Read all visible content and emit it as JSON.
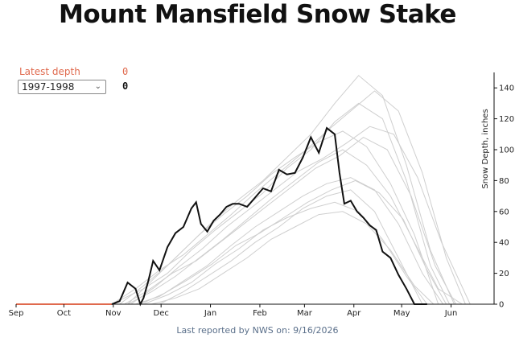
{
  "header": {
    "title": "Mount Mansfield Snow Stake"
  },
  "controls": {
    "latest_depth_label": "Latest depth",
    "latest_depth_value": "0",
    "season_selected": "1997-1998",
    "season_depth_value": "0"
  },
  "footer": {
    "text": "Last reported by NWS on: 9/16/2026"
  },
  "colors": {
    "accent": "#e06a4e",
    "highlight_line": "#111111",
    "background_lines": "#cfcfcf",
    "footer_text": "#5a6f8a"
  },
  "chart_data": {
    "type": "line",
    "title": "Mount Mansfield Snow Stake",
    "xlabel": "",
    "ylabel": "Snow Depth, inches",
    "x_tick_labels": [
      "Sep",
      "Oct",
      "Nov",
      "Dec",
      "Jan",
      "Feb",
      "Mar",
      "Apr",
      "May",
      "Jun"
    ],
    "y_ticks": [
      0,
      20,
      40,
      60,
      80,
      100,
      120,
      140
    ],
    "ylim": [
      0,
      150
    ],
    "x_unit": "days since Sep 1",
    "grid": false,
    "y_axis_position": "right",
    "series": [
      {
        "name": "1997-1998",
        "highlighted": true,
        "x": [
          0,
          60,
          65,
          70,
          75,
          78,
          80,
          83,
          86,
          90,
          95,
          100,
          105,
          110,
          113,
          116,
          120,
          124,
          128,
          132,
          136,
          140,
          145,
          150,
          155,
          160,
          165,
          170,
          175,
          180,
          185,
          190,
          195,
          200,
          203,
          206,
          210,
          214,
          218,
          222,
          226,
          230,
          235,
          240,
          245,
          250,
          255,
          258
        ],
        "y": [
          0,
          0,
          2,
          14,
          10,
          0,
          4,
          15,
          28,
          22,
          37,
          46,
          50,
          62,
          66,
          52,
          47,
          54,
          58,
          63,
          65,
          65,
          63,
          69,
          75,
          73,
          87,
          84,
          85,
          95,
          108,
          98,
          114,
          110,
          85,
          65,
          67,
          60,
          56,
          51,
          48,
          34,
          30,
          19,
          10,
          0,
          0,
          0
        ]
      },
      {
        "name": "",
        "highlighted": false,
        "x": [
          0,
          70,
          85,
          100,
          115,
          130,
          145,
          160,
          175,
          190,
          205,
          220,
          235,
          250,
          265,
          280
        ],
        "y": [
          0,
          0,
          8,
          18,
          30,
          42,
          55,
          68,
          80,
          92,
          100,
          90,
          70,
          40,
          10,
          0
        ]
      },
      {
        "name": "",
        "highlighted": false,
        "x": [
          0,
          60,
          80,
          95,
          110,
          125,
          140,
          155,
          170,
          185,
          200,
          215,
          230,
          245,
          260,
          272
        ],
        "y": [
          0,
          0,
          10,
          20,
          35,
          48,
          60,
          72,
          88,
          100,
          118,
          130,
          120,
          80,
          25,
          0
        ]
      },
      {
        "name": "",
        "highlighted": false,
        "x": [
          0,
          75,
          90,
          105,
          120,
          135,
          150,
          165,
          180,
          195,
          210,
          225,
          240,
          255,
          268
        ],
        "y": [
          0,
          0,
          5,
          15,
          25,
          38,
          50,
          60,
          70,
          78,
          82,
          74,
          52,
          20,
          0
        ]
      },
      {
        "name": "",
        "highlighted": false,
        "x": [
          0,
          65,
          80,
          95,
          110,
          125,
          140,
          155,
          170,
          185,
          200,
          215,
          230,
          245,
          260,
          275
        ],
        "y": [
          0,
          0,
          12,
          25,
          40,
          55,
          68,
          80,
          95,
          110,
          130,
          148,
          135,
          90,
          35,
          0
        ]
      },
      {
        "name": "",
        "highlighted": false,
        "x": [
          0,
          80,
          95,
          110,
          125,
          140,
          155,
          170,
          185,
          200,
          215,
          230,
          245,
          258
        ],
        "y": [
          0,
          0,
          6,
          14,
          26,
          36,
          48,
          56,
          62,
          66,
          60,
          42,
          18,
          0
        ]
      },
      {
        "name": "",
        "highlighted": false,
        "x": [
          0,
          70,
          85,
          100,
          115,
          130,
          145,
          160,
          175,
          190,
          205,
          220,
          235,
          250,
          265
        ],
        "y": [
          0,
          0,
          15,
          30,
          45,
          58,
          70,
          84,
          95,
          105,
          112,
          102,
          78,
          45,
          0
        ]
      },
      {
        "name": "",
        "highlighted": false,
        "x": [
          0,
          85,
          100,
          115,
          130,
          145,
          160,
          175,
          190,
          205,
          220,
          235,
          250,
          262
        ],
        "y": [
          0,
          0,
          4,
          10,
          20,
          30,
          42,
          50,
          58,
          60,
          52,
          35,
          12,
          0
        ]
      },
      {
        "name": "",
        "highlighted": false,
        "x": [
          0,
          60,
          75,
          90,
          105,
          120,
          135,
          150,
          165,
          180,
          195,
          210,
          225,
          240,
          255,
          270,
          282
        ],
        "y": [
          0,
          0,
          10,
          22,
          32,
          45,
          58,
          72,
          85,
          98,
          112,
          125,
          138,
          125,
          85,
          30,
          0
        ]
      },
      {
        "name": "",
        "highlighted": false,
        "x": [
          0,
          90,
          105,
          120,
          135,
          150,
          165,
          180,
          195,
          210,
          225,
          240,
          255
        ],
        "y": [
          0,
          0,
          8,
          18,
          28,
          40,
          50,
          62,
          70,
          74,
          60,
          30,
          0
        ]
      },
      {
        "name": "",
        "highlighted": false,
        "x": [
          0,
          68,
          83,
          98,
          113,
          128,
          143,
          158,
          173,
          188,
          203,
          218,
          233,
          248,
          263,
          276
        ],
        "y": [
          0,
          0,
          9,
          20,
          28,
          40,
          52,
          64,
          76,
          88,
          96,
          108,
          100,
          70,
          25,
          0
        ]
      },
      {
        "name": "",
        "highlighted": false,
        "x": [
          0,
          78,
          93,
          108,
          123,
          138,
          153,
          168,
          183,
          198,
          213,
          228,
          243,
          258,
          270
        ],
        "y": [
          0,
          0,
          7,
          16,
          26,
          38,
          46,
          56,
          66,
          74,
          80,
          72,
          55,
          22,
          0
        ]
      },
      {
        "name": "",
        "highlighted": false,
        "x": [
          0,
          72,
          87,
          102,
          117,
          132,
          147,
          162,
          177,
          192,
          207,
          222,
          237,
          252,
          267,
          285
        ],
        "y": [
          0,
          0,
          11,
          24,
          36,
          50,
          62,
          74,
          86,
          94,
          104,
          115,
          110,
          82,
          40,
          0
        ]
      }
    ]
  }
}
